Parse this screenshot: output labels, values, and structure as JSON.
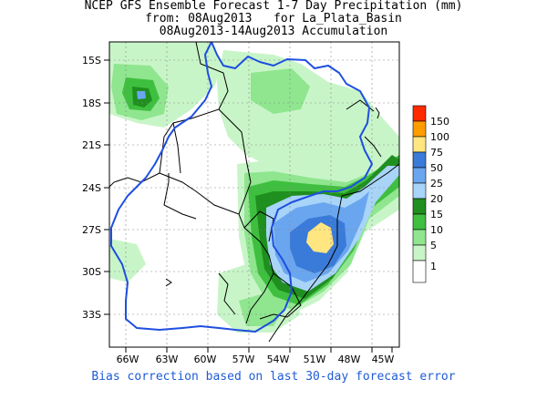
{
  "title": {
    "line1": "NCEP GFS Ensemble Forecast 1-7 Day Precipitation (mm)",
    "line2": "from: 08Aug2013   for La_Plata_Basin",
    "line3": "08Aug2013-14Aug2013 Accumulation"
  },
  "axes": {
    "lat_labels": [
      "15S",
      "18S",
      "21S",
      "24S",
      "27S",
      "30S",
      "33S"
    ],
    "lon_labels": [
      "66W",
      "63W",
      "60W",
      "57W",
      "54W",
      "51W",
      "48W",
      "45W"
    ]
  },
  "legend": {
    "labels": [
      "150",
      "100",
      "75",
      "50",
      "25",
      "20",
      "15",
      "10",
      "5",
      "1"
    ],
    "colors": [
      "#ff2a00",
      "#ff9c00",
      "#ffe680",
      "#3a7ad9",
      "#6aa6f0",
      "#a8d4f8",
      "#1f8f1f",
      "#3fbf3f",
      "#8fe68f",
      "#c8f5c8",
      "#ffffff"
    ]
  },
  "footer": "Bias correction based on last 30-day forecast error",
  "colors": {
    "basin_outline": "#1e4fe0",
    "borders": "#000000",
    "grid": "#888888"
  }
}
